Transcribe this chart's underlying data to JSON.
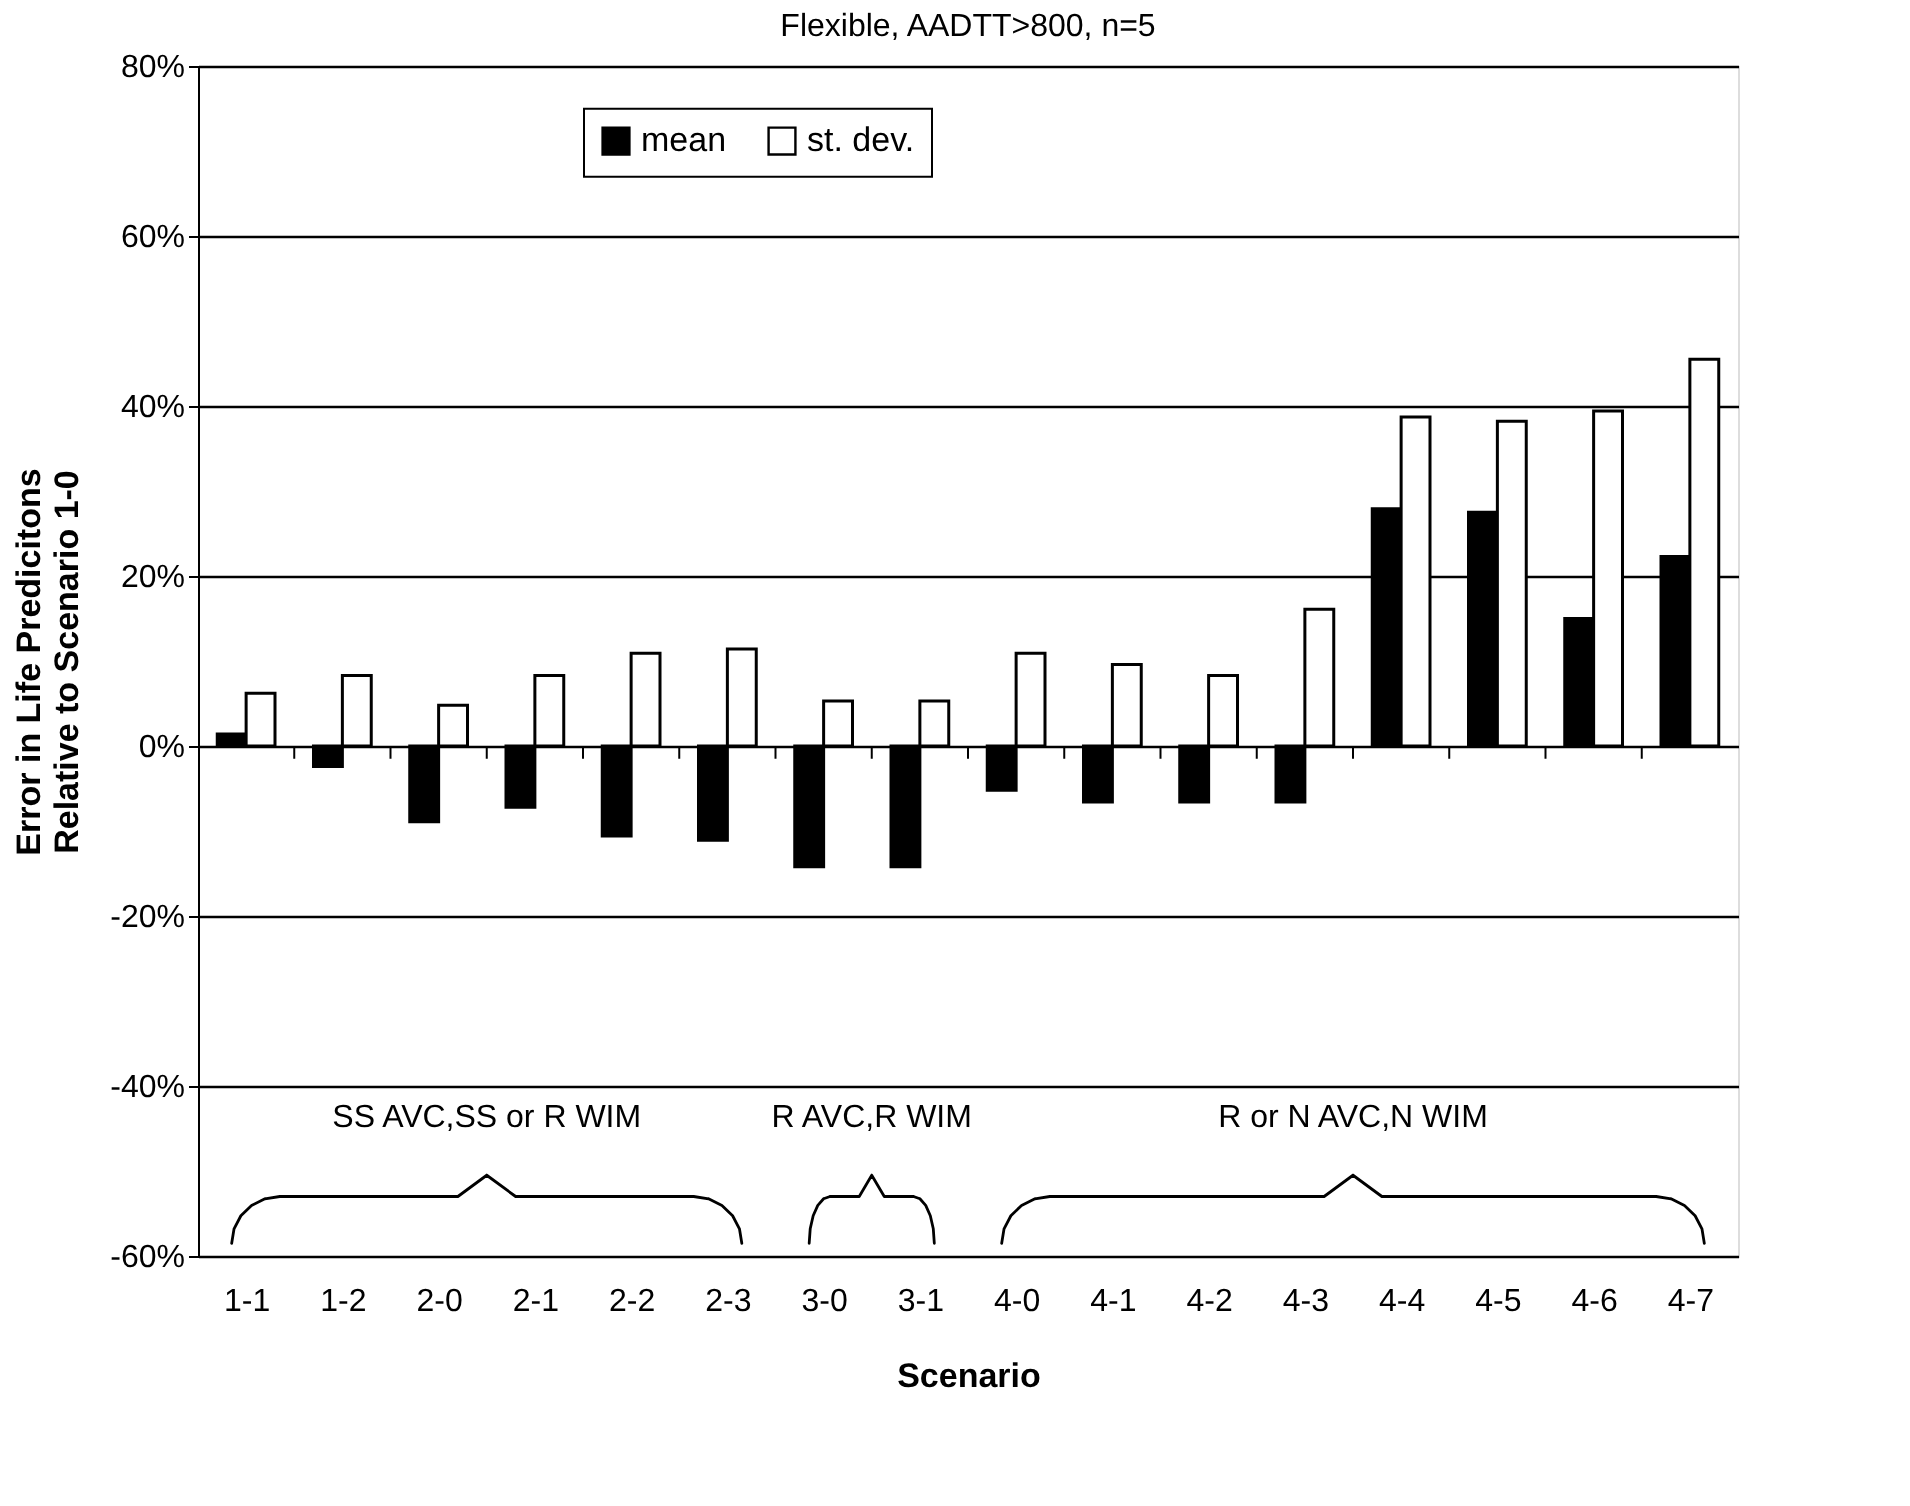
{
  "chart_data": {
    "type": "bar",
    "title": "Flexible, AADTT>800, n=5",
    "xlabel": "Scenario",
    "ylabel": "Error in Life Predicitons\nRelative to Scenario 1-0",
    "categories": [
      "1-1",
      "1-2",
      "2-0",
      "2-1",
      "2-2",
      "2-3",
      "3-0",
      "3-1",
      "4-0",
      "4-1",
      "4-2",
      "4-3",
      "4-4",
      "4-5",
      "4-6",
      "4-7"
    ],
    "series": [
      {
        "name": "mean",
        "color": "#000000",
        "values": [
          1.4,
          -2.4,
          -8.9,
          -7.2,
          -10.6,
          -11.1,
          -14.2,
          -14.2,
          -5.2,
          -6.6,
          -6.6,
          -6.6,
          27.9,
          27.5,
          15.0,
          22.3
        ]
      },
      {
        "name": "st. dev.",
        "color": "#ffffff",
        "values": [
          6.2,
          8.3,
          4.8,
          8.3,
          10.9,
          11.4,
          5.3,
          5.3,
          10.9,
          9.6,
          8.3,
          16.1,
          38.7,
          38.2,
          39.4,
          45.5
        ]
      }
    ],
    "ylim": [
      -60,
      80
    ],
    "yticks": [
      {
        "value": -60,
        "label": "-60%"
      },
      {
        "value": -40,
        "label": "-40%"
      },
      {
        "value": -20,
        "label": "-20%"
      },
      {
        "value": 0,
        "label": "0%"
      },
      {
        "value": 20,
        "label": "20%"
      },
      {
        "value": 40,
        "label": "40%"
      },
      {
        "value": 60,
        "label": "60%"
      },
      {
        "value": 80,
        "label": "80%"
      }
    ],
    "grid": "y",
    "legend": "top",
    "annotations": [
      "SS AVC,SS or R WIM",
      "R AVC,R WIM",
      "R or N AVC,N WIM"
    ]
  }
}
